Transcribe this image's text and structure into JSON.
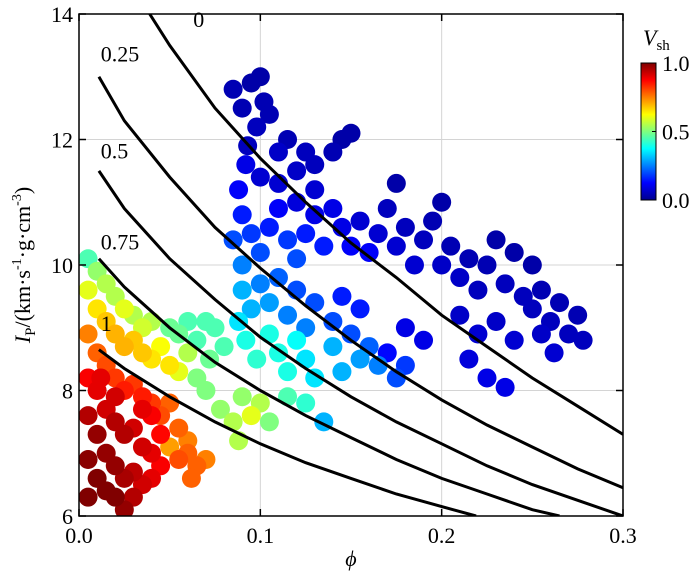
{
  "chart_data": {
    "type": "scatter",
    "xlabel": "ϕ",
    "ylabel_main": "I",
    "ylabel_sub": "P",
    "ylabel_units": "/(km·s",
    "ylabel_exp1": "-1",
    "ylabel_mid": "·g·cm",
    "ylabel_exp2": "-3",
    "ylabel_close": ")",
    "xlim": [
      0.0,
      0.3
    ],
    "ylim": [
      6,
      14
    ],
    "x_ticks": [
      0.0,
      0.1,
      0.2,
      0.3
    ],
    "x_tick_labels": [
      "0.0",
      "0.1",
      "0.2",
      "0.3"
    ],
    "y_ticks": [
      6,
      8,
      10,
      12,
      14
    ],
    "y_tick_labels": [
      "6",
      "8",
      "10",
      "12",
      "14"
    ],
    "grid": true,
    "colorbar": {
      "title_main": "V",
      "title_sub": "sh",
      "range": [
        0.0,
        1.0
      ],
      "ticks": [
        0.0,
        0.5,
        1.0
      ],
      "tick_labels": [
        "0.0",
        "0.5",
        "1.0"
      ],
      "colormap": "jet"
    },
    "curves": [
      {
        "label": "0",
        "vsh": 0.0,
        "points": [
          [
            0.039,
            14.0
          ],
          [
            0.05,
            13.5
          ],
          [
            0.075,
            12.5
          ],
          [
            0.1,
            11.7
          ],
          [
            0.125,
            11.0
          ],
          [
            0.15,
            10.35
          ],
          [
            0.175,
            9.8
          ],
          [
            0.2,
            9.2
          ],
          [
            0.225,
            8.7
          ],
          [
            0.25,
            8.2
          ],
          [
            0.275,
            7.75
          ],
          [
            0.3,
            7.3
          ]
        ]
      },
      {
        "label": "0.25",
        "vsh": 0.25,
        "points": [
          [
            0.011,
            13.0
          ],
          [
            0.025,
            12.3
          ],
          [
            0.05,
            11.4
          ],
          [
            0.075,
            10.6
          ],
          [
            0.1,
            9.95
          ],
          [
            0.125,
            9.35
          ],
          [
            0.15,
            8.8
          ],
          [
            0.175,
            8.3
          ],
          [
            0.2,
            7.85
          ],
          [
            0.225,
            7.45
          ],
          [
            0.25,
            7.1
          ],
          [
            0.275,
            6.75
          ],
          [
            0.3,
            6.45
          ]
        ]
      },
      {
        "label": "0.5",
        "vsh": 0.5,
        "points": [
          [
            0.011,
            11.5
          ],
          [
            0.025,
            10.9
          ],
          [
            0.05,
            10.1
          ],
          [
            0.075,
            9.45
          ],
          [
            0.1,
            8.85
          ],
          [
            0.125,
            8.35
          ],
          [
            0.15,
            7.9
          ],
          [
            0.175,
            7.5
          ],
          [
            0.2,
            7.15
          ],
          [
            0.225,
            6.8
          ],
          [
            0.25,
            6.5
          ],
          [
            0.275,
            6.25
          ],
          [
            0.3,
            6.0
          ]
        ]
      },
      {
        "label": "0.75",
        "vsh": 0.75,
        "points": [
          [
            0.011,
            10.1
          ],
          [
            0.025,
            9.65
          ],
          [
            0.05,
            9.0
          ],
          [
            0.075,
            8.45
          ],
          [
            0.1,
            8.0
          ],
          [
            0.125,
            7.6
          ],
          [
            0.15,
            7.25
          ],
          [
            0.175,
            6.9
          ],
          [
            0.2,
            6.6
          ],
          [
            0.225,
            6.35
          ],
          [
            0.25,
            6.1
          ],
          [
            0.265,
            6.0
          ]
        ]
      },
      {
        "label": "1",
        "vsh": 1.0,
        "points": [
          [
            0.011,
            8.65
          ],
          [
            0.025,
            8.35
          ],
          [
            0.05,
            7.9
          ],
          [
            0.075,
            7.5
          ],
          [
            0.1,
            7.15
          ],
          [
            0.125,
            6.85
          ],
          [
            0.15,
            6.6
          ],
          [
            0.175,
            6.35
          ],
          [
            0.2,
            6.15
          ],
          [
            0.219,
            6.0
          ]
        ]
      }
    ],
    "curve_label_anchor": [
      [
        0.063,
        13.7
      ],
      [
        0.012,
        13.15
      ],
      [
        0.012,
        11.6
      ],
      [
        0.012,
        10.15
      ],
      [
        0.012,
        8.85
      ]
    ],
    "points": [
      [
        0.085,
        12.8,
        0.05
      ],
      [
        0.09,
        12.5,
        0.05
      ],
      [
        0.095,
        12.9,
        0.04
      ],
      [
        0.1,
        13.0,
        0.04
      ],
      [
        0.102,
        12.6,
        0.05
      ],
      [
        0.098,
        12.2,
        0.06
      ],
      [
        0.093,
        11.9,
        0.06
      ],
      [
        0.105,
        12.4,
        0.05
      ],
      [
        0.11,
        11.8,
        0.07
      ],
      [
        0.115,
        12.0,
        0.05
      ],
      [
        0.12,
        11.5,
        0.07
      ],
      [
        0.125,
        11.8,
        0.06
      ],
      [
        0.13,
        11.6,
        0.06
      ],
      [
        0.14,
        11.8,
        0.05
      ],
      [
        0.145,
        12.0,
        0.04
      ],
      [
        0.15,
        12.1,
        0.04
      ],
      [
        0.13,
        11.2,
        0.08
      ],
      [
        0.12,
        11.0,
        0.09
      ],
      [
        0.11,
        11.3,
        0.08
      ],
      [
        0.1,
        11.4,
        0.08
      ],
      [
        0.092,
        11.6,
        0.1
      ],
      [
        0.088,
        11.2,
        0.12
      ],
      [
        0.09,
        10.8,
        0.15
      ],
      [
        0.085,
        10.4,
        0.2
      ],
      [
        0.09,
        10.0,
        0.25
      ],
      [
        0.095,
        10.5,
        0.18
      ],
      [
        0.1,
        10.2,
        0.2
      ],
      [
        0.105,
        10.6,
        0.15
      ],
      [
        0.11,
        10.9,
        0.12
      ],
      [
        0.115,
        10.4,
        0.18
      ],
      [
        0.12,
        10.1,
        0.2
      ],
      [
        0.125,
        10.5,
        0.15
      ],
      [
        0.13,
        10.8,
        0.1
      ],
      [
        0.135,
        10.3,
        0.15
      ],
      [
        0.14,
        10.9,
        0.1
      ],
      [
        0.145,
        10.6,
        0.1
      ],
      [
        0.15,
        10.3,
        0.12
      ],
      [
        0.155,
        10.7,
        0.08
      ],
      [
        0.16,
        10.2,
        0.12
      ],
      [
        0.165,
        10.5,
        0.08
      ],
      [
        0.17,
        10.9,
        0.06
      ],
      [
        0.175,
        10.3,
        0.08
      ],
      [
        0.175,
        11.3,
        0.04
      ],
      [
        0.18,
        10.6,
        0.06
      ],
      [
        0.185,
        10.0,
        0.08
      ],
      [
        0.19,
        10.4,
        0.06
      ],
      [
        0.195,
        10.7,
        0.05
      ],
      [
        0.2,
        11.0,
        0.04
      ],
      [
        0.2,
        10.0,
        0.07
      ],
      [
        0.205,
        10.3,
        0.05
      ],
      [
        0.21,
        9.8,
        0.07
      ],
      [
        0.215,
        10.1,
        0.05
      ],
      [
        0.22,
        9.6,
        0.06
      ],
      [
        0.225,
        10.0,
        0.05
      ],
      [
        0.23,
        10.4,
        0.04
      ],
      [
        0.235,
        9.7,
        0.06
      ],
      [
        0.24,
        10.2,
        0.04
      ],
      [
        0.245,
        9.5,
        0.06
      ],
      [
        0.25,
        10.0,
        0.04
      ],
      [
        0.25,
        9.3,
        0.06
      ],
      [
        0.255,
        9.6,
        0.05
      ],
      [
        0.26,
        9.1,
        0.06
      ],
      [
        0.265,
        9.4,
        0.05
      ],
      [
        0.27,
        8.9,
        0.06
      ],
      [
        0.275,
        9.2,
        0.05
      ],
      [
        0.278,
        8.8,
        0.06
      ],
      [
        0.262,
        8.6,
        0.08
      ],
      [
        0.255,
        8.9,
        0.07
      ],
      [
        0.24,
        8.8,
        0.08
      ],
      [
        0.23,
        9.1,
        0.07
      ],
      [
        0.22,
        8.9,
        0.08
      ],
      [
        0.21,
        9.2,
        0.07
      ],
      [
        0.235,
        8.05,
        0.1
      ],
      [
        0.225,
        8.2,
        0.1
      ],
      [
        0.215,
        8.5,
        0.09
      ],
      [
        0.19,
        8.8,
        0.1
      ],
      [
        0.18,
        9.0,
        0.1
      ],
      [
        0.17,
        8.6,
        0.13
      ],
      [
        0.175,
        8.2,
        0.2
      ],
      [
        0.18,
        8.4,
        0.18
      ],
      [
        0.165,
        8.4,
        0.25
      ],
      [
        0.16,
        8.7,
        0.22
      ],
      [
        0.15,
        8.9,
        0.2
      ],
      [
        0.155,
        9.3,
        0.15
      ],
      [
        0.145,
        9.5,
        0.15
      ],
      [
        0.14,
        9.1,
        0.2
      ],
      [
        0.13,
        9.4,
        0.2
      ],
      [
        0.125,
        9.0,
        0.25
      ],
      [
        0.12,
        9.6,
        0.2
      ],
      [
        0.115,
        9.2,
        0.25
      ],
      [
        0.11,
        9.8,
        0.22
      ],
      [
        0.105,
        9.4,
        0.28
      ],
      [
        0.1,
        9.7,
        0.25
      ],
      [
        0.095,
        9.3,
        0.3
      ],
      [
        0.09,
        9.6,
        0.3
      ],
      [
        0.088,
        9.1,
        0.35
      ],
      [
        0.092,
        8.8,
        0.4
      ],
      [
        0.098,
        8.5,
        0.42
      ],
      [
        0.105,
        8.9,
        0.4
      ],
      [
        0.11,
        8.6,
        0.4
      ],
      [
        0.115,
        8.3,
        0.4
      ],
      [
        0.12,
        8.8,
        0.38
      ],
      [
        0.125,
        8.5,
        0.35
      ],
      [
        0.13,
        8.2,
        0.35
      ],
      [
        0.135,
        7.5,
        0.3
      ],
      [
        0.14,
        8.7,
        0.3
      ],
      [
        0.145,
        8.3,
        0.3
      ],
      [
        0.155,
        8.5,
        0.28
      ],
      [
        0.05,
        9.0,
        0.48
      ],
      [
        0.055,
        8.9,
        0.48
      ],
      [
        0.06,
        9.1,
        0.45
      ],
      [
        0.065,
        8.8,
        0.45
      ],
      [
        0.07,
        9.1,
        0.45
      ],
      [
        0.075,
        9.0,
        0.45
      ],
      [
        0.08,
        8.7,
        0.45
      ],
      [
        0.072,
        8.5,
        0.48
      ],
      [
        0.065,
        8.2,
        0.5
      ],
      [
        0.07,
        8.0,
        0.5
      ],
      [
        0.078,
        7.7,
        0.52
      ],
      [
        0.085,
        7.5,
        0.55
      ],
      [
        0.088,
        7.2,
        0.55
      ],
      [
        0.09,
        7.9,
        0.52
      ],
      [
        0.095,
        7.6,
        0.6
      ],
      [
        0.1,
        7.8,
        0.55
      ],
      [
        0.105,
        7.5,
        0.5
      ],
      [
        0.115,
        7.9,
        0.45
      ],
      [
        0.125,
        7.8,
        0.42
      ],
      [
        0.005,
        10.1,
        0.45
      ],
      [
        0.01,
        9.9,
        0.52
      ],
      [
        0.015,
        9.7,
        0.55
      ],
      [
        0.02,
        9.5,
        0.55
      ],
      [
        0.025,
        9.3,
        0.6
      ],
      [
        0.03,
        9.2,
        0.55
      ],
      [
        0.035,
        9.0,
        0.58
      ],
      [
        0.04,
        9.1,
        0.55
      ],
      [
        0.005,
        9.6,
        0.6
      ],
      [
        0.01,
        9.3,
        0.65
      ],
      [
        0.015,
        9.1,
        0.68
      ],
      [
        0.02,
        8.9,
        0.7
      ],
      [
        0.025,
        8.7,
        0.7
      ],
      [
        0.03,
        8.8,
        0.68
      ],
      [
        0.035,
        8.6,
        0.68
      ],
      [
        0.04,
        8.5,
        0.65
      ],
      [
        0.045,
        8.7,
        0.62
      ],
      [
        0.05,
        8.4,
        0.65
      ],
      [
        0.055,
        8.3,
        0.6
      ],
      [
        0.06,
        8.6,
        0.55
      ],
      [
        0.005,
        8.9,
        0.75
      ],
      [
        0.01,
        8.6,
        0.78
      ],
      [
        0.015,
        8.4,
        0.8
      ],
      [
        0.02,
        8.2,
        0.82
      ],
      [
        0.025,
        8.0,
        0.85
      ],
      [
        0.03,
        8.1,
        0.82
      ],
      [
        0.035,
        7.9,
        0.85
      ],
      [
        0.04,
        7.8,
        0.82
      ],
      [
        0.045,
        7.6,
        0.8
      ],
      [
        0.05,
        7.8,
        0.78
      ],
      [
        0.055,
        7.4,
        0.78
      ],
      [
        0.06,
        7.2,
        0.75
      ],
      [
        0.05,
        7.1,
        0.72
      ],
      [
        0.055,
        6.9,
        0.8
      ],
      [
        0.06,
        7.0,
        0.78
      ],
      [
        0.065,
        6.8,
        0.78
      ],
      [
        0.07,
        6.9,
        0.75
      ],
      [
        0.062,
        6.6,
        0.78
      ],
      [
        0.005,
        8.2,
        0.88
      ],
      [
        0.01,
        8.0,
        0.9
      ],
      [
        0.015,
        7.7,
        0.92
      ],
      [
        0.02,
        7.5,
        0.95
      ],
      [
        0.025,
        7.3,
        0.95
      ],
      [
        0.03,
        7.4,
        0.92
      ],
      [
        0.035,
        7.1,
        0.92
      ],
      [
        0.04,
        7.0,
        0.9
      ],
      [
        0.045,
        6.8,
        0.88
      ],
      [
        0.005,
        7.6,
        0.95
      ],
      [
        0.01,
        7.3,
        0.98
      ],
      [
        0.015,
        7.0,
        0.98
      ],
      [
        0.02,
        6.8,
        0.98
      ],
      [
        0.025,
        6.6,
        0.96
      ],
      [
        0.03,
        6.7,
        0.94
      ],
      [
        0.035,
        6.5,
        0.92
      ],
      [
        0.04,
        6.6,
        0.9
      ],
      [
        0.005,
        6.9,
        0.99
      ],
      [
        0.01,
        6.6,
        1.0
      ],
      [
        0.015,
        6.4,
        1.0
      ],
      [
        0.02,
        6.3,
        1.0
      ],
      [
        0.025,
        6.1,
        0.98
      ],
      [
        0.005,
        6.3,
        1.0
      ],
      [
        0.03,
        6.3,
        0.95
      ],
      [
        0.045,
        7.3,
        0.87
      ],
      [
        0.04,
        7.6,
        0.88
      ],
      [
        0.035,
        7.7,
        0.9
      ],
      [
        0.02,
        7.9,
        0.92
      ],
      [
        0.012,
        8.2,
        0.9
      ]
    ]
  }
}
